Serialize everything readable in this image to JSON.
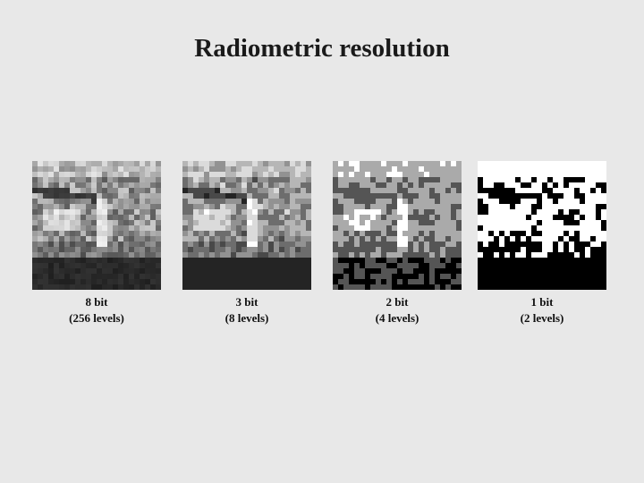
{
  "slide": {
    "title": "Radiometric resolution"
  },
  "panels": [
    {
      "id": "8bit",
      "label": "8 bit",
      "levels_text": "(256 levels)",
      "levels": 256
    },
    {
      "id": "3bit",
      "label": "3 bit",
      "levels_text": "(8 levels)",
      "levels": 8
    },
    {
      "id": "2bit",
      "label": "2 bit",
      "levels_text": "(4 levels)",
      "levels": 4
    },
    {
      "id": "1bit",
      "label": "1 bit",
      "levels_text": "(2 levels)",
      "levels": 2
    }
  ]
}
